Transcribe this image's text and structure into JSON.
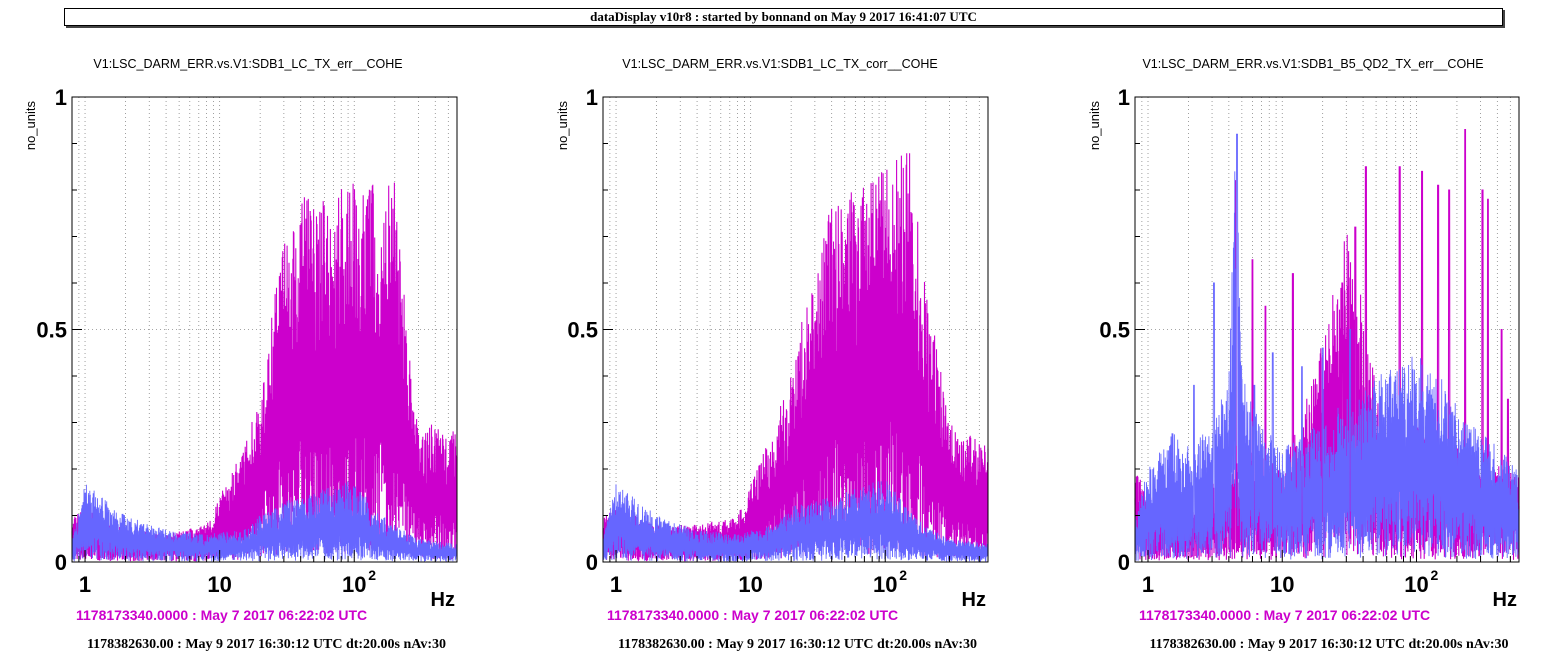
{
  "header": {
    "title": "dataDisplay v10r8 : started by bonnand on May  9 2017 16:41:07 UTC"
  },
  "colors": {
    "reference": "#cc00cc",
    "current": "#6666ff",
    "grid": "#888888",
    "axis": "#000000"
  },
  "chart_data": [
    {
      "type": "line",
      "title": "V1:LSC_DARM_ERR.vs.V1:SDB1_LC_TX_err__COHE",
      "ylabel": "no_units",
      "xlabel": "Hz",
      "xscale": "log",
      "xlim": [
        0.8,
        580
      ],
      "ylim": [
        0,
        1
      ],
      "yticks": [
        {
          "v": 0,
          "label": "0"
        },
        {
          "v": 0.5,
          "label": "0.5"
        },
        {
          "v": 1,
          "label": "1"
        }
      ],
      "xticks": [
        {
          "v": 1,
          "base": "1",
          "sup": ""
        },
        {
          "v": 10,
          "base": "10",
          "sup": ""
        },
        {
          "v": 100,
          "base": "10",
          "sup": "2"
        }
      ],
      "grid": true,
      "reference_time": "1178173340.0000 : May  7 2017 06:22:02 UTC",
      "current_time": "1178382630.00 : May  9 2017 16:30:12 UTC dt:20.00s nAv:30",
      "series": [
        {
          "role": "reference",
          "envelope": [
            [
              0.8,
              0.1
            ],
            [
              1,
              0.12
            ],
            [
              2,
              0.07
            ],
            [
              4,
              0.06
            ],
            [
              8,
              0.08
            ],
            [
              15,
              0.25
            ],
            [
              20,
              0.35
            ],
            [
              25,
              0.55
            ],
            [
              30,
              0.7
            ],
            [
              40,
              0.8
            ],
            [
              60,
              0.78
            ],
            [
              100,
              0.82
            ],
            [
              200,
              0.82
            ],
            [
              250,
              0.5
            ],
            [
              300,
              0.28
            ],
            [
              400,
              0.3
            ],
            [
              580,
              0.28
            ]
          ]
        },
        {
          "role": "current",
          "envelope": [
            [
              0.8,
              0.05
            ],
            [
              1,
              0.17
            ],
            [
              2,
              0.1
            ],
            [
              4,
              0.07
            ],
            [
              8,
              0.06
            ],
            [
              15,
              0.07
            ],
            [
              20,
              0.1
            ],
            [
              30,
              0.13
            ],
            [
              50,
              0.15
            ],
            [
              100,
              0.18
            ],
            [
              150,
              0.11
            ],
            [
              200,
              0.08
            ],
            [
              300,
              0.05
            ],
            [
              580,
              0.04
            ]
          ]
        }
      ]
    },
    {
      "type": "line",
      "title": "V1:LSC_DARM_ERR.vs.V1:SDB1_LC_TX_corr__COHE",
      "ylabel": "no_units",
      "xlabel": "Hz",
      "xscale": "log",
      "xlim": [
        0.8,
        580
      ],
      "ylim": [
        0,
        1
      ],
      "yticks": [
        {
          "v": 0,
          "label": "0"
        },
        {
          "v": 0.5,
          "label": "0.5"
        },
        {
          "v": 1,
          "label": "1"
        }
      ],
      "xticks": [
        {
          "v": 1,
          "base": "1",
          "sup": ""
        },
        {
          "v": 10,
          "base": "10",
          "sup": ""
        },
        {
          "v": 100,
          "base": "10",
          "sup": "2"
        }
      ],
      "grid": true,
      "reference_time": "1178173340.0000 : May  7 2017 06:22:02 UTC",
      "current_time": "1178382630.00 : May  9 2017 16:30:12 UTC dt:20.00s nAv:30",
      "series": [
        {
          "role": "reference",
          "envelope": [
            [
              0.8,
              0.1
            ],
            [
              1,
              0.12
            ],
            [
              2,
              0.08
            ],
            [
              4,
              0.08
            ],
            [
              8,
              0.1
            ],
            [
              15,
              0.3
            ],
            [
              20,
              0.4
            ],
            [
              25,
              0.55
            ],
            [
              30,
              0.6
            ],
            [
              40,
              0.78
            ],
            [
              60,
              0.8
            ],
            [
              100,
              0.85
            ],
            [
              150,
              0.9
            ],
            [
              200,
              0.6
            ],
            [
              300,
              0.3
            ],
            [
              400,
              0.28
            ],
            [
              580,
              0.25
            ]
          ]
        },
        {
          "role": "current",
          "envelope": [
            [
              0.8,
              0.05
            ],
            [
              1,
              0.17
            ],
            [
              2,
              0.1
            ],
            [
              4,
              0.07
            ],
            [
              8,
              0.06
            ],
            [
              15,
              0.08
            ],
            [
              20,
              0.12
            ],
            [
              30,
              0.13
            ],
            [
              50,
              0.15
            ],
            [
              100,
              0.18
            ],
            [
              150,
              0.11
            ],
            [
              200,
              0.08
            ],
            [
              300,
              0.05
            ],
            [
              580,
              0.04
            ]
          ]
        }
      ]
    },
    {
      "type": "line",
      "title": "V1:LSC_DARM_ERR.vs.V1:SDB1_B5_QD2_TX_err__COHE",
      "ylabel": "no_units",
      "xlabel": "Hz",
      "xscale": "log",
      "xlim": [
        0.8,
        580
      ],
      "ylim": [
        0,
        1
      ],
      "yticks": [
        {
          "v": 0,
          "label": "0"
        },
        {
          "v": 0.5,
          "label": "0.5"
        },
        {
          "v": 1,
          "label": "1"
        }
      ],
      "xticks": [
        {
          "v": 1,
          "base": "1",
          "sup": ""
        },
        {
          "v": 10,
          "base": "10",
          "sup": ""
        },
        {
          "v": 100,
          "base": "10",
          "sup": "2"
        }
      ],
      "grid": true,
      "reference_time": "1178173340.0000 : May  7 2017 06:22:02 UTC",
      "current_time": "1178382630.00 : May  9 2017 16:30:12 UTC dt:20.00s nAv:30",
      "series": [
        {
          "role": "reference",
          "envelope": [
            [
              0.8,
              0.2
            ],
            [
              1,
              0.15
            ],
            [
              2,
              0.15
            ],
            [
              4,
              0.2
            ],
            [
              6,
              0.25
            ],
            [
              10,
              0.2
            ],
            [
              15,
              0.35
            ],
            [
              25,
              0.6
            ],
            [
              30,
              0.72
            ],
            [
              40,
              0.55
            ],
            [
              60,
              0.25
            ],
            [
              100,
              0.3
            ],
            [
              200,
              0.25
            ],
            [
              300,
              0.22
            ],
            [
              580,
              0.2
            ]
          ]
        },
        {
          "role": "current",
          "envelope": [
            [
              0.8,
              0.1
            ],
            [
              1,
              0.2
            ],
            [
              1.5,
              0.28
            ],
            [
              2,
              0.25
            ],
            [
              3,
              0.3
            ],
            [
              4,
              0.4
            ],
            [
              4.5,
              0.92
            ],
            [
              5,
              0.4
            ],
            [
              7,
              0.3
            ],
            [
              10,
              0.25
            ],
            [
              20,
              0.3
            ],
            [
              30,
              0.35
            ],
            [
              50,
              0.4
            ],
            [
              100,
              0.45
            ],
            [
              150,
              0.4
            ],
            [
              200,
              0.35
            ],
            [
              300,
              0.28
            ],
            [
              400,
              0.25
            ],
            [
              580,
              0.2
            ]
          ]
        }
      ],
      "peaks": {
        "reference": [
          [
            4.5,
            0.82
          ],
          [
            6,
            0.65
          ],
          [
            7.5,
            0.55
          ],
          [
            12,
            0.62
          ],
          [
            28,
            0.6
          ],
          [
            35,
            0.72
          ],
          [
            42,
            0.85
          ],
          [
            75,
            0.85
          ],
          [
            110,
            0.84
          ],
          [
            145,
            0.81
          ],
          [
            175,
            0.8
          ],
          [
            230,
            0.93
          ],
          [
            310,
            0.8
          ],
          [
            340,
            0.78
          ],
          [
            430,
            0.5
          ],
          [
            480,
            0.35
          ]
        ],
        "current": [
          [
            2.2,
            0.38
          ],
          [
            3.1,
            0.6
          ],
          [
            4.6,
            0.92
          ],
          [
            6.2,
            0.38
          ],
          [
            8.5,
            0.45
          ],
          [
            14,
            0.42
          ],
          [
            20,
            0.46
          ],
          [
            32,
            0.5
          ]
        ]
      }
    }
  ]
}
